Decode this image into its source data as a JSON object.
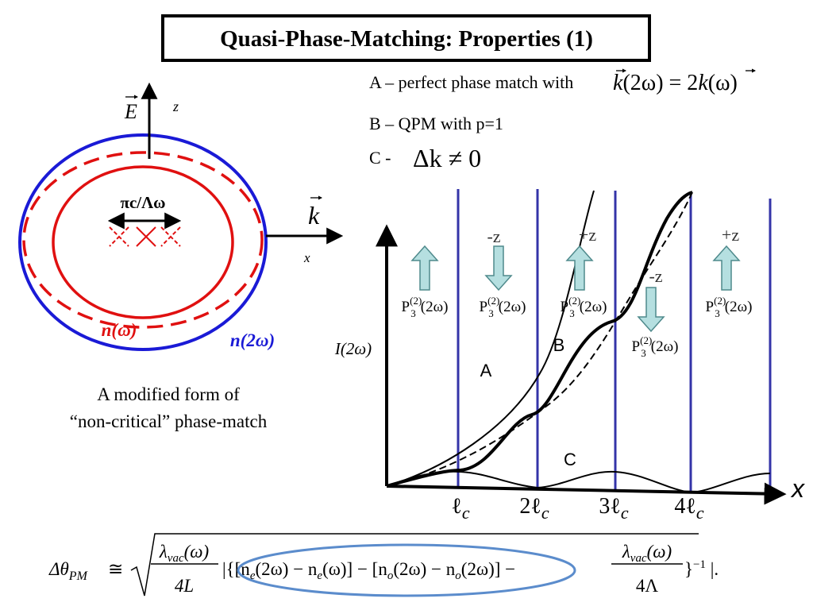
{
  "title": "Quasi-Phase-Matching: Properties (1)",
  "legend": {
    "a": {
      "text": "A – perfect phase match with",
      "formula": [
        "k",
        "(2ω) = 2",
        "k",
        "(ω)"
      ]
    },
    "b": "B – QPM with p=1",
    "c": {
      "text": "C -",
      "formula": "Δk ≠ 0"
    }
  },
  "ellipse_diagram": {
    "e_field": "E",
    "z_axis": "z",
    "k_vector": "k",
    "x_axis": "x",
    "spacing": "πc/Λω",
    "n_omega": "n(ω)",
    "n_2omega": "n(2ω)"
  },
  "caption": [
    "A modified form of",
    "“non-critical” phase-match"
  ],
  "plot": {
    "y_label": "I(2ω)",
    "x_label": "x",
    "curves": [
      "A",
      "B",
      "C"
    ],
    "x_ticks": [
      {
        "prefix": "ℓ",
        "sub": "c"
      },
      {
        "prefix": "2ℓ",
        "sub": "c"
      },
      {
        "prefix": "3ℓ",
        "sub": "c"
      },
      {
        "prefix": "4ℓ",
        "sub": "c"
      }
    ],
    "domains": [
      {
        "base": "P",
        "sub": "3",
        "sup": "(2)",
        "arg": "(2ω)"
      },
      {
        "direction": "-z",
        "base": "P",
        "sub": "3",
        "sup": "(2)",
        "arg": "(2ω)"
      },
      {
        "direction": "+z",
        "base": "P",
        "sub": "3",
        "sup": "(2)",
        "arg": "(2ω)"
      },
      {
        "direction": "-z",
        "base": "P",
        "sub": "3",
        "sup": "(2)",
        "arg": "(2ω)"
      },
      {
        "direction": "+z",
        "base": "P",
        "sub": "3",
        "sup": "(2)",
        "arg": "(2ω)"
      }
    ]
  },
  "formula": {
    "lhs": "Δθ",
    "lhs_sub": "PM",
    "approx": "≅",
    "frac1": {
      "num": "λ",
      "num_sub": "vac",
      "num_arg": "(ω)",
      "den": "4L"
    },
    "middle": [
      "|{[n",
      "e",
      "(2ω) − n",
      "e",
      "(ω)] − [n",
      "o",
      "(2ω) − n",
      "o",
      "(2ω)] −"
    ],
    "frac2": {
      "num": "λ",
      "num_sub": "vac",
      "num_arg": "(ω)",
      "den": "4Λ"
    },
    "tail": "}",
    "tail_sup": "−1",
    "end": " |."
  }
}
